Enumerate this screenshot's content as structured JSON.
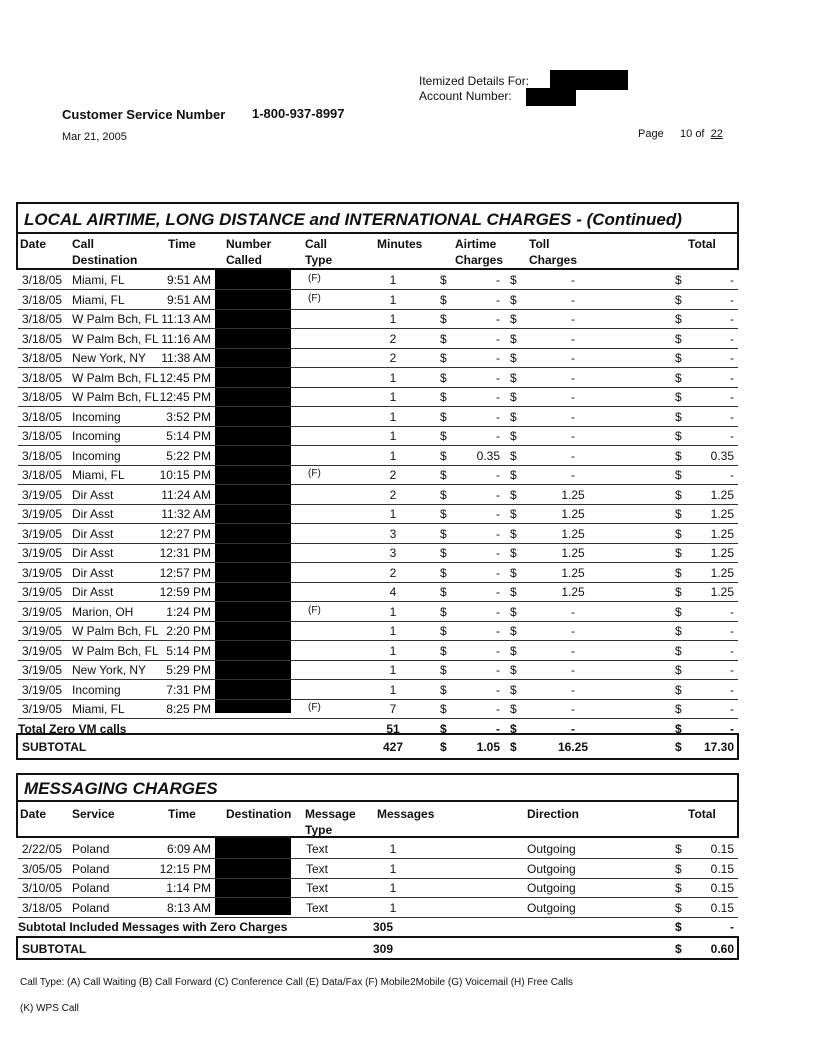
{
  "header": {
    "itemized_label": "Itemized Details For:",
    "account_label": "Account Number:",
    "cs_label": "Customer Service Number",
    "cs_number": "1-800-937-8997",
    "date": "Mar 21, 2005",
    "page_label": "Page",
    "page_num": "10",
    "page_of": "of",
    "page_total": "22"
  },
  "calls": {
    "title": "LOCAL AIRTIME, LONG DISTANCE and INTERNATIONAL CHARGES - (Continued)",
    "headers": {
      "date": "Date",
      "dest": "Call Destination",
      "time": "Time",
      "number": "Number Called",
      "type": "Call Type",
      "minutes": "Minutes",
      "airtime": "Airtime Charges",
      "toll": "Toll Charges",
      "total": "Total"
    },
    "rows": [
      [
        "3/18/05",
        "Miami, FL",
        "9:51 AM",
        "(F)",
        "1",
        "-",
        "-",
        "-"
      ],
      [
        "3/18/05",
        "Miami, FL",
        "9:51 AM",
        "(F)",
        "1",
        "-",
        "-",
        "-"
      ],
      [
        "3/18/05",
        "W Palm Bch, FL",
        "11:13 AM",
        "",
        "1",
        "-",
        "-",
        "-"
      ],
      [
        "3/18/05",
        "W Palm Bch, FL",
        "11:16 AM",
        "",
        "2",
        "-",
        "-",
        "-"
      ],
      [
        "3/18/05",
        "New York, NY",
        "11:38 AM",
        "",
        "2",
        "-",
        "-",
        "-"
      ],
      [
        "3/18/05",
        "W Palm Bch, FL",
        "12:45 PM",
        "",
        "1",
        "-",
        "-",
        "-"
      ],
      [
        "3/18/05",
        "W Palm Bch, FL",
        "12:45 PM",
        "",
        "1",
        "-",
        "-",
        "-"
      ],
      [
        "3/18/05",
        "Incoming",
        "3:52 PM",
        "",
        "1",
        "-",
        "-",
        "-"
      ],
      [
        "3/18/05",
        "Incoming",
        "5:14 PM",
        "",
        "1",
        "-",
        "-",
        "-"
      ],
      [
        "3/18/05",
        "Incoming",
        "5:22 PM",
        "",
        "1",
        "0.35",
        "-",
        "0.35"
      ],
      [
        "3/18/05",
        "Miami, FL",
        "10:15 PM",
        "(F)",
        "2",
        "-",
        "-",
        "-"
      ],
      [
        "3/19/05",
        "Dir Asst",
        "11:24 AM",
        "",
        "2",
        "-",
        "1.25",
        "1.25"
      ],
      [
        "3/19/05",
        "Dir Asst",
        "11:32 AM",
        "",
        "1",
        "-",
        "1.25",
        "1.25"
      ],
      [
        "3/19/05",
        "Dir Asst",
        "12:27 PM",
        "",
        "3",
        "-",
        "1.25",
        "1.25"
      ],
      [
        "3/19/05",
        "Dir Asst",
        "12:31 PM",
        "",
        "3",
        "-",
        "1.25",
        "1.25"
      ],
      [
        "3/19/05",
        "Dir Asst",
        "12:57 PM",
        "",
        "2",
        "-",
        "1.25",
        "1.25"
      ],
      [
        "3/19/05",
        "Dir Asst",
        "12:59 PM",
        "",
        "4",
        "-",
        "1.25",
        "1.25"
      ],
      [
        "3/19/05",
        "Marion, OH",
        "1:24 PM",
        "(F)",
        "1",
        "-",
        "-",
        "-"
      ],
      [
        "3/19/05",
        "W Palm Bch, FL",
        "2:20 PM",
        "",
        "1",
        "-",
        "-",
        "-"
      ],
      [
        "3/19/05",
        "W Palm Bch, FL",
        "5:14 PM",
        "",
        "1",
        "-",
        "-",
        "-"
      ],
      [
        "3/19/05",
        "New York, NY",
        "5:29 PM",
        "",
        "1",
        "-",
        "-",
        "-"
      ],
      [
        "3/19/05",
        "Incoming",
        "7:31 PM",
        "",
        "1",
        "-",
        "-",
        "-"
      ],
      [
        "3/19/05",
        "Miami, FL",
        "8:25 PM",
        "(F)",
        "7",
        "-",
        "-",
        "-"
      ]
    ],
    "zero_vm": {
      "label": "Total Zero VM calls",
      "minutes": "51",
      "airtime": "-",
      "toll": "-",
      "total": "-"
    },
    "subtotal": {
      "label": "SUBTOTAL",
      "minutes": "427",
      "airtime": "1.05",
      "toll": "16.25",
      "total": "17.30"
    },
    "currency": "$"
  },
  "messaging": {
    "title": "MESSAGING CHARGES",
    "headers": {
      "date": "Date",
      "service": "Service",
      "time": "Time",
      "dest": "Destination",
      "type": "Message Type",
      "messages": "Messages",
      "direction": "Direction",
      "total": "Total"
    },
    "rows": [
      [
        "2/22/05",
        "Poland",
        "6:09 AM",
        "Text",
        "1",
        "Outgoing",
        "0.15"
      ],
      [
        "3/05/05",
        "Poland",
        "12:15 PM",
        "Text",
        "1",
        "Outgoing",
        "0.15"
      ],
      [
        "3/10/05",
        "Poland",
        "1:14 PM",
        "Text",
        "1",
        "Outgoing",
        "0.15"
      ],
      [
        "3/18/05",
        "Poland",
        "8:13 AM",
        "Text",
        "1",
        "Outgoing",
        "0.15"
      ]
    ],
    "included": {
      "label": "Subtotal Included Messages with Zero Charges",
      "messages": "305",
      "total": "-"
    },
    "subtotal": {
      "label": "SUBTOTAL",
      "messages": "309",
      "total": "0.60"
    }
  },
  "footer": {
    "legend": "Call Type: (A) Call Waiting (B) Call Forward (C) Conference Call (E) Data/Fax (F) Mobile2Mobile (G) Voicemail (H) Free Calls",
    "legend2": "(K) WPS Call"
  }
}
